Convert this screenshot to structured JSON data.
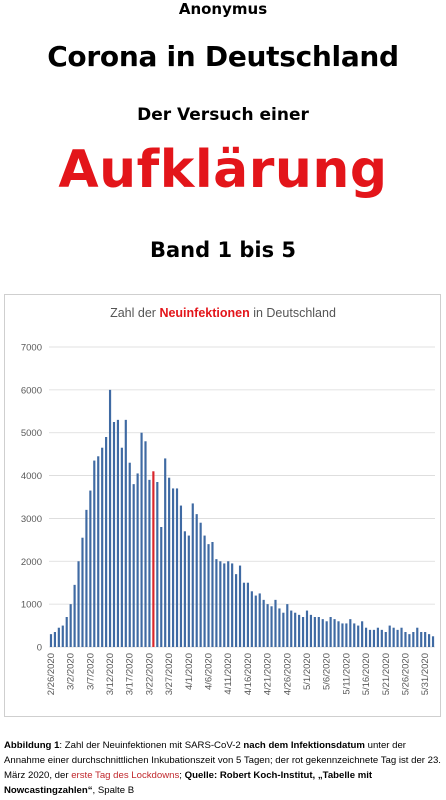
{
  "header": {
    "author": "Anonymus",
    "title": "Corona in Deutschland",
    "subtitle": "Der Versuch einer",
    "highlight": "Aufklärung",
    "volume": "Band 1 bis 5"
  },
  "colors": {
    "accent_red": "#e3151a",
    "bar_blue": "#3f6aa3",
    "lockdown_red": "#d9262c"
  },
  "chart_data": {
    "type": "bar",
    "title_parts": [
      "Zahl der ",
      "Neuinfektionen",
      " in Deutschland"
    ],
    "ylim": [
      0,
      7000
    ],
    "yticks": [
      0,
      1000,
      2000,
      3000,
      4000,
      5000,
      6000,
      7000
    ],
    "x_tick_labels": [
      "2/26/2020",
      "3/2/2020",
      "3/7/2020",
      "3/12/2020",
      "3/17/2020",
      "3/22/2020",
      "3/27/2020",
      "4/1/2020",
      "4/6/2020",
      "4/11/2020",
      "4/16/2020",
      "4/21/2020",
      "4/26/2020",
      "5/1/2020",
      "5/6/2020",
      "5/11/2020",
      "5/16/2020",
      "5/21/2020",
      "5/26/2020",
      "5/31/2020"
    ],
    "categories": [
      "2/26/2020",
      "2/27/2020",
      "2/28/2020",
      "2/29/2020",
      "3/1/2020",
      "3/2/2020",
      "3/3/2020",
      "3/4/2020",
      "3/5/2020",
      "3/6/2020",
      "3/7/2020",
      "3/8/2020",
      "3/9/2020",
      "3/10/2020",
      "3/11/2020",
      "3/12/2020",
      "3/13/2020",
      "3/14/2020",
      "3/15/2020",
      "3/16/2020",
      "3/17/2020",
      "3/18/2020",
      "3/19/2020",
      "3/20/2020",
      "3/21/2020",
      "3/22/2020",
      "3/23/2020",
      "3/24/2020",
      "3/25/2020",
      "3/26/2020",
      "3/27/2020",
      "3/28/2020",
      "3/29/2020",
      "3/30/2020",
      "3/31/2020",
      "4/1/2020",
      "4/2/2020",
      "4/3/2020",
      "4/4/2020",
      "4/5/2020",
      "4/6/2020",
      "4/7/2020",
      "4/8/2020",
      "4/9/2020",
      "4/10/2020",
      "4/11/2020",
      "4/12/2020",
      "4/13/2020",
      "4/14/2020",
      "4/15/2020",
      "4/16/2020",
      "4/17/2020",
      "4/18/2020",
      "4/19/2020",
      "4/20/2020",
      "4/21/2020",
      "4/22/2020",
      "4/23/2020",
      "4/24/2020",
      "4/25/2020",
      "4/26/2020",
      "4/27/2020",
      "4/28/2020",
      "4/29/2020",
      "4/30/2020",
      "5/1/2020",
      "5/2/2020",
      "5/3/2020",
      "5/4/2020",
      "5/5/2020",
      "5/6/2020",
      "5/7/2020",
      "5/8/2020",
      "5/9/2020",
      "5/10/2020",
      "5/11/2020",
      "5/12/2020",
      "5/13/2020",
      "5/14/2020",
      "5/15/2020",
      "5/16/2020",
      "5/17/2020",
      "5/18/2020",
      "5/19/2020",
      "5/20/2020",
      "5/21/2020",
      "5/22/2020",
      "5/23/2020",
      "5/24/2020",
      "5/25/2020",
      "5/26/2020",
      "5/27/2020",
      "5/28/2020",
      "5/29/2020",
      "5/30/2020",
      "5/31/2020",
      "6/1/2020",
      "6/2/2020"
    ],
    "values": [
      300,
      350,
      450,
      500,
      700,
      1000,
      1450,
      2000,
      2550,
      3200,
      3650,
      4350,
      4450,
      4650,
      4900,
      6000,
      5250,
      5300,
      4650,
      5300,
      4300,
      3800,
      4050,
      5000,
      4800,
      3900,
      4100,
      3850,
      2800,
      4400,
      3950,
      3700,
      3700,
      3300,
      2700,
      2600,
      3350,
      3100,
      2900,
      2600,
      2400,
      2450,
      2050,
      2000,
      1950,
      2000,
      1950,
      1700,
      1900,
      1500,
      1500,
      1300,
      1200,
      1250,
      1100,
      1000,
      950,
      1100,
      900,
      800,
      1000,
      850,
      800,
      750,
      700,
      850,
      750,
      700,
      700,
      650,
      600,
      700,
      650,
      600,
      550,
      550,
      650,
      550,
      500,
      600,
      450,
      400,
      400,
      450,
      400,
      350,
      500,
      450,
      400,
      450,
      350,
      300,
      350,
      450,
      350,
      350,
      300,
      250
    ],
    "highlight_category": "3/23/2020"
  },
  "caption": {
    "lead": "Abbildung 1",
    "t1": ": Zahl der Neuinfektionen mit SARS-CoV-2 ",
    "b1": "nach dem Infektionsdatum",
    "t2": " unter der Annahme einer durchschnittlichen Inkubationszeit von 5 Tagen; der rot gekennzeichnete Tag ist der 23. März 2020, der ",
    "red": "erste Tag des Lockdowns",
    "t3": "; ",
    "b2": "Quelle: Robert Koch-Institut, „Tabelle mit Nowcastingzahlen“",
    "t4": ", Spalte B"
  }
}
